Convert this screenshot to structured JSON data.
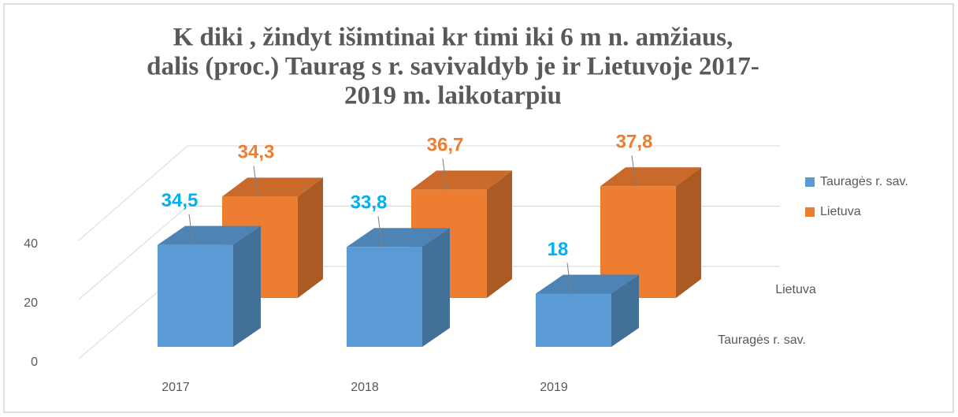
{
  "chart_data": {
    "type": "bar3d",
    "title": [
      "K diki , žindyt išimtinai kr timi iki 6 m n. amžiaus,",
      "dalis (proc.) Taurag s r. savivaldyb je ir Lietuvoje 2017-",
      "2019 m. laikotarpiu"
    ],
    "categories": [
      "2017",
      "2018",
      "2019"
    ],
    "series": [
      {
        "name": "Tauragės r. sav.",
        "color": "#5b9bd5",
        "label_color": "#00b0f0",
        "values": [
          34.5,
          33.8,
          18
        ],
        "value_labels": [
          "34,5",
          "33,8",
          "18"
        ]
      },
      {
        "name": "Lietuva",
        "color": "#ed7d31",
        "label_color": "#ed7d31",
        "values": [
          34.3,
          36.7,
          37.8
        ],
        "value_labels": [
          "34,3",
          "36,7",
          "37,8"
        ]
      }
    ],
    "ylim": [
      0,
      40
    ],
    "yticks": [
      0,
      20,
      40
    ],
    "grid": true,
    "legend": "right"
  }
}
